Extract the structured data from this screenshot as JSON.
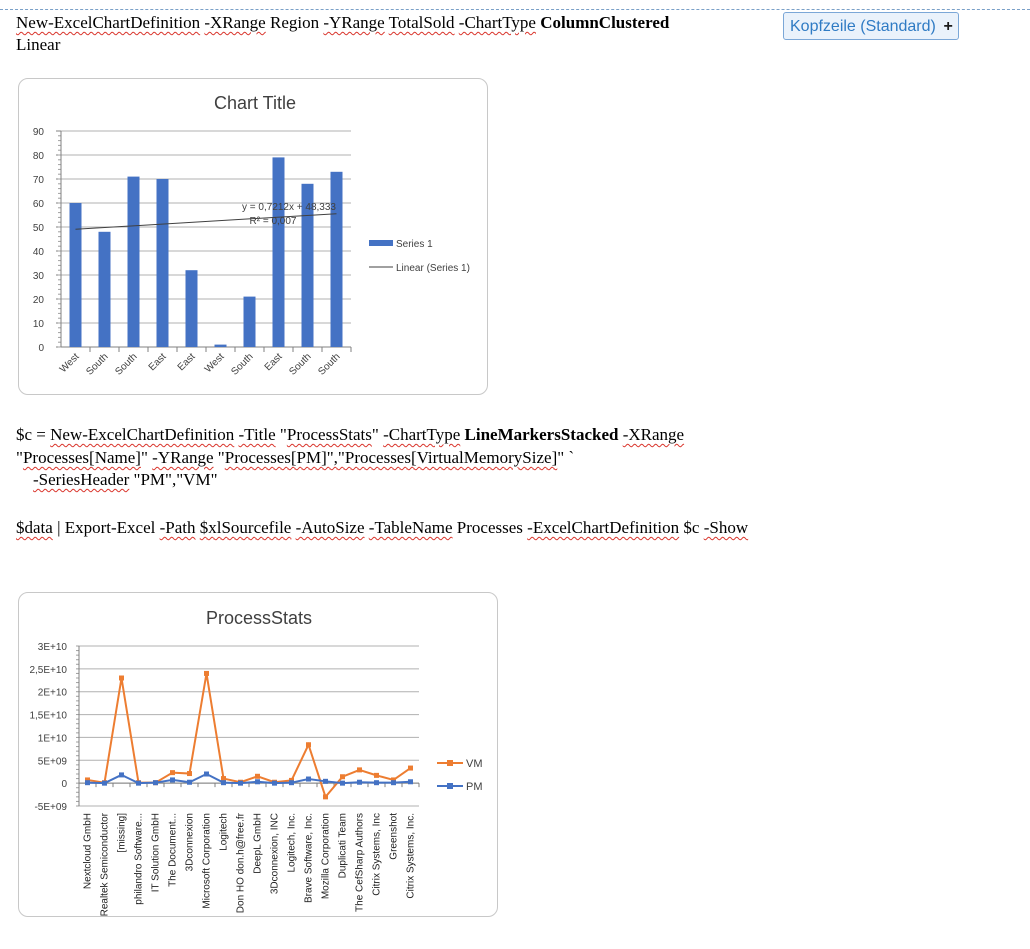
{
  "document": {
    "line1": [
      {
        "t": "New-ExcelChartDefinition",
        "sq": true
      },
      {
        "t": " ",
        "sq": false
      },
      {
        "t": "-XRange",
        "sq": true
      },
      {
        "t": " Region ",
        "sq": false
      },
      {
        "t": "-YRange",
        "sq": true
      },
      {
        "t": " ",
        "sq": false
      },
      {
        "t": "TotalSold",
        "sq": true
      },
      {
        "t": " ",
        "sq": false
      },
      {
        "t": "-ChartType",
        "sq": true
      },
      {
        "t": " ",
        "sq": false
      },
      {
        "t": "ColumnClustered",
        "sq": false,
        "b": true
      }
    ],
    "line2": [
      {
        "t": "Linear",
        "sq": false
      }
    ],
    "line3": [
      {
        "t": "$c = ",
        "sq": false
      },
      {
        "t": "New-ExcelChartDefinition",
        "sq": true
      },
      {
        "t": " ",
        "sq": false
      },
      {
        "t": "-Title",
        "sq": true
      },
      {
        "t": " \"",
        "sq": false
      },
      {
        "t": "ProcessStats",
        "sq": true
      },
      {
        "t": "\" ",
        "sq": false
      },
      {
        "t": "-ChartType",
        "sq": true
      },
      {
        "t": " ",
        "sq": false
      },
      {
        "t": "LineMarkersStacked",
        "sq": false,
        "b": true
      },
      {
        "t": " ",
        "sq": false
      },
      {
        "t": "-XRange",
        "sq": true
      }
    ],
    "line4": [
      {
        "t": " \"",
        "sq": false
      },
      {
        "t": "Processes[Name]",
        "sq": true
      },
      {
        "t": "\" ",
        "sq": false
      },
      {
        "t": "-YRange",
        "sq": true
      },
      {
        "t": " \"",
        "sq": false
      },
      {
        "t": "Processes[PM]\",\"Processes[VirtualMemorySize]",
        "sq": true
      },
      {
        "t": "\" `",
        "sq": false
      }
    ],
    "line5": [
      {
        "t": "    ",
        "sq": false
      },
      {
        "t": "-SeriesHeader",
        "sq": true
      },
      {
        "t": " \"PM\",\"VM\"",
        "sq": false
      }
    ],
    "line6": [
      {
        "t": "$data",
        "sq": true
      },
      {
        "t": " | Export-Excel ",
        "sq": false
      },
      {
        "t": "-Path",
        "sq": true
      },
      {
        "t": " ",
        "sq": false
      },
      {
        "t": "$xlSourcefile",
        "sq": true
      },
      {
        "t": " ",
        "sq": false
      },
      {
        "t": "-AutoSize",
        "sq": true
      },
      {
        "t": " ",
        "sq": false
      },
      {
        "t": "-TableName",
        "sq": true
      },
      {
        "t": " Processes ",
        "sq": false
      },
      {
        "t": "-ExcelChartDefinition",
        "sq": true
      },
      {
        "t": " $c  ",
        "sq": false
      },
      {
        "t": "-Show",
        "sq": true
      }
    ]
  },
  "header_tag": {
    "label": "Kopfzeile (Standard)",
    "plus": "+"
  },
  "chart_data": [
    {
      "type": "bar",
      "title": "Chart Title",
      "categories": [
        "West",
        "South",
        "South",
        "East",
        "East",
        "West",
        "South",
        "East",
        "South",
        "South"
      ],
      "values": [
        60,
        48,
        71,
        70,
        32,
        1,
        21,
        79,
        68,
        73
      ],
      "ylim": [
        0,
        90
      ],
      "yticks": [
        "0",
        "10",
        "20",
        "30",
        "40",
        "50",
        "60",
        "70",
        "80",
        "90"
      ],
      "grid": true,
      "legend_placement": "right",
      "series": [
        {
          "name": "Series 1",
          "color": "#4472c4"
        }
      ],
      "trendline": {
        "name": "Linear (Series 1)",
        "slope": 0.7212,
        "intercept": 48.333,
        "equation": "y = 0,7212x + 48,333",
        "r2": "R² = 0,007"
      }
    },
    {
      "type": "line",
      "title": "ProcessStats",
      "categories": [
        "Nextcloud GmbH",
        "Realtek Semiconductor",
        "[missing]",
        "philandro Software...",
        "IT Solution GmbH",
        "The Document...",
        "3Dconnexion",
        "Microsoft Corporation",
        "Logitech",
        "Don HO don.h@free.fr",
        "DeepL GmbH",
        "3Dconnexion, INC",
        "Logitech, Inc.",
        "Brave Software, Inc.",
        "Mozilla Corporation",
        "Duplicati Team",
        "The CefSharp Authors",
        "Citrix Systems, Inc",
        "Greenshot",
        "Citrix Systems, Inc."
      ],
      "ylim": [
        -5000000000,
        30000000000
      ],
      "yticks": [
        {
          "v": 30000000000,
          "l": "3E+10"
        },
        {
          "v": 25000000000,
          "l": "2,5E+10"
        },
        {
          "v": 20000000000,
          "l": "2E+10"
        },
        {
          "v": 15000000000,
          "l": "1,5E+10"
        },
        {
          "v": 10000000000,
          "l": "1E+10"
        },
        {
          "v": 5000000000,
          "l": "5E+09"
        },
        {
          "v": 0,
          "l": "0"
        },
        {
          "v": -5000000000,
          "l": "-5E+09"
        }
      ],
      "grid": true,
      "legend_placement": "right",
      "series": [
        {
          "name": "VM",
          "color": "#ed7d31",
          "values": [
            700000000,
            100000000,
            23000000000,
            100000000,
            100000000,
            2300000000,
            2100000000,
            24000000000,
            1000000000,
            200000000,
            1500000000,
            200000000,
            600000000,
            8400000000,
            -3000000000,
            1400000000,
            2900000000,
            1700000000,
            700000000,
            3300000000
          ]
        },
        {
          "name": "PM",
          "color": "#4472c4",
          "values": [
            100000000,
            0,
            1800000000,
            0,
            100000000,
            700000000,
            200000000,
            2000000000,
            100000000,
            0,
            300000000,
            0,
            100000000,
            900000000,
            400000000,
            0,
            200000000,
            100000000,
            100000000,
            300000000
          ]
        }
      ]
    }
  ]
}
